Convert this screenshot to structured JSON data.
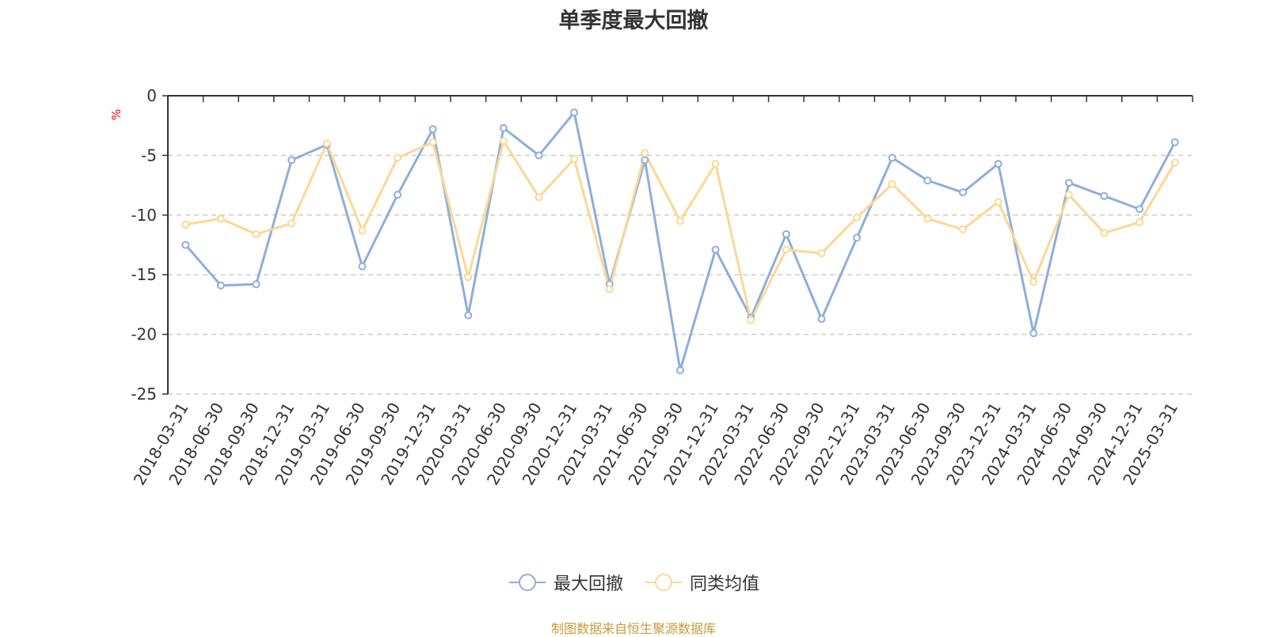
{
  "colors": {
    "series1": "#8eaedb",
    "series2": "#fbd894",
    "unit": "#ff0000",
    "footer": "#c69c3c",
    "grid": "#cccccc"
  },
  "chart_data": {
    "type": "line",
    "title": "单季度最大回撤",
    "unit_label": "%",
    "x": [
      "2018-03-31",
      "2018-06-30",
      "2018-09-30",
      "2018-12-31",
      "2019-03-31",
      "2019-06-30",
      "2019-09-30",
      "2019-12-31",
      "2020-03-31",
      "2020-06-30",
      "2020-09-30",
      "2020-12-31",
      "2021-03-31",
      "2021-06-30",
      "2021-09-30",
      "2021-12-31",
      "2022-03-31",
      "2022-06-30",
      "2022-09-30",
      "2022-12-31",
      "2023-03-31",
      "2023-06-30",
      "2023-09-30",
      "2023-12-31",
      "2024-03-31",
      "2024-06-30",
      "2024-09-30",
      "2024-12-31",
      "2025-03-31"
    ],
    "series": [
      {
        "name": "最大回撤",
        "values": [
          -12.5,
          -15.9,
          -15.8,
          -5.4,
          -4.1,
          -14.3,
          -8.3,
          -2.8,
          -18.4,
          -2.7,
          -5.0,
          -1.4,
          -15.8,
          -5.4,
          -23.0,
          -12.9,
          -18.6,
          -11.6,
          -18.7,
          -11.9,
          -5.2,
          -7.1,
          -8.1,
          -5.7,
          -19.9,
          -7.3,
          -8.4,
          -9.5,
          -3.9
        ]
      },
      {
        "name": "同类均值",
        "values": [
          -10.8,
          -10.3,
          -11.6,
          -10.7,
          -4.0,
          -11.3,
          -5.2,
          -3.9,
          -15.2,
          -3.8,
          -8.5,
          -5.3,
          -16.2,
          -4.8,
          -10.5,
          -5.7,
          -18.8,
          -12.9,
          -13.2,
          -10.2,
          -7.4,
          -10.3,
          -11.2,
          -8.9,
          -15.6,
          -8.3,
          -11.5,
          -10.6,
          -5.6
        ]
      }
    ],
    "ylim": [
      -25,
      0
    ],
    "yticks": [
      0,
      -5,
      -10,
      -15,
      -20,
      -25
    ],
    "grid": true,
    "legend_position": "bottom-center"
  },
  "footer_text": "制图数据来自恒生聚源数据库"
}
